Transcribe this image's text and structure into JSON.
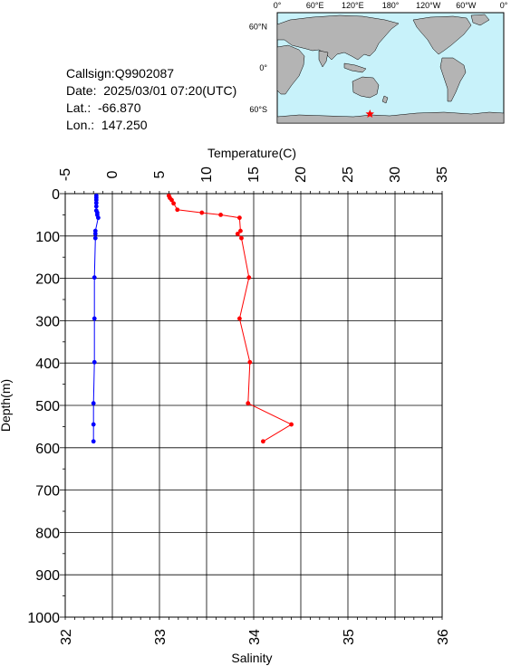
{
  "station": {
    "callsign": "Callsign:Q9902087",
    "date": "Date:  2025/03/01 07:20(UTC)",
    "lat": "Lat.:  -66.870",
    "lon": "Lon.:  147.250"
  },
  "map": {
    "lon_labels": [
      "0°",
      "60°E",
      "120°E",
      "180°",
      "120°W",
      "60°W",
      "0°"
    ],
    "lat_labels": [
      "60°N",
      "0°",
      "60°S"
    ],
    "ocean_color": "#c8f2fa",
    "land_color": "#b4b4b4",
    "marker_lat": -66.87,
    "marker_lon": 147.25,
    "marker_color": "#ff0000"
  },
  "chart_data": {
    "type": "line",
    "top_axis_label": "Temperature(C)",
    "bottom_axis_label": "Salinity",
    "ylabel": "Depth(m)",
    "temp_ticks": [
      "-5",
      "0",
      "5",
      "10",
      "15",
      "20",
      "25",
      "30",
      "35"
    ],
    "sal_ticks": [
      "32",
      "33",
      "34",
      "35",
      "36"
    ],
    "depth_ticks": [
      "0",
      "100",
      "200",
      "300",
      "400",
      "500",
      "600",
      "700",
      "800",
      "900",
      "1000"
    ],
    "temp_range": [
      -5,
      35
    ],
    "salinity_range": [
      32,
      36
    ],
    "depth_range": [
      1000,
      0
    ],
    "grid": true,
    "series": [
      {
        "name": "Temperature",
        "color": "#ff0000",
        "axis": "top",
        "points": [
          [
            6.0,
            5
          ],
          [
            6.1,
            10
          ],
          [
            6.3,
            15
          ],
          [
            6.5,
            23
          ],
          [
            6.9,
            38
          ],
          [
            9.5,
            45
          ],
          [
            11.5,
            50
          ],
          [
            13.5,
            57
          ],
          [
            13.6,
            88
          ],
          [
            13.3,
            95
          ],
          [
            13.7,
            105
          ],
          [
            14.5,
            198
          ],
          [
            13.5,
            295
          ],
          [
            14.6,
            398
          ],
          [
            14.4,
            495
          ],
          [
            19.0,
            545
          ],
          [
            16.0,
            585
          ]
        ]
      },
      {
        "name": "Salinity",
        "color": "#0000ff",
        "axis": "bottom",
        "points": [
          [
            32.33,
            5
          ],
          [
            32.33,
            10
          ],
          [
            32.33,
            15
          ],
          [
            32.33,
            22
          ],
          [
            32.33,
            30
          ],
          [
            32.33,
            40
          ],
          [
            32.34,
            45
          ],
          [
            32.34,
            50
          ],
          [
            32.35,
            57
          ],
          [
            32.32,
            88
          ],
          [
            32.32,
            95
          ],
          [
            32.32,
            105
          ],
          [
            32.31,
            198
          ],
          [
            32.31,
            295
          ],
          [
            32.31,
            398
          ],
          [
            32.3,
            495
          ],
          [
            32.3,
            545
          ],
          [
            32.3,
            585
          ]
        ]
      }
    ]
  }
}
